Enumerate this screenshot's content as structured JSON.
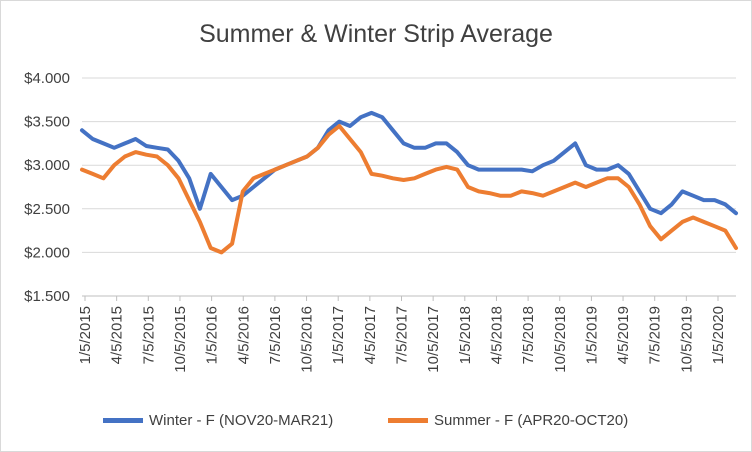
{
  "chart_data": {
    "type": "line",
    "title": "Summer & Winter Strip Average",
    "xlabel": "",
    "ylabel": "",
    "ylim": [
      1.5,
      4.0
    ],
    "y_ticks": [
      1.5,
      2.0,
      2.5,
      3.0,
      3.5,
      4.0
    ],
    "y_tick_labels": [
      "$1.500",
      "$2.000",
      "$2.500",
      "$3.000",
      "$3.500",
      "$4.000"
    ],
    "x_tick_labels": [
      "1/5/2015",
      "4/5/2015",
      "7/5/2015",
      "10/5/2015",
      "1/5/2016",
      "4/5/2016",
      "7/5/2016",
      "10/5/2016",
      "1/5/2017",
      "4/5/2017",
      "7/5/2017",
      "10/5/2017",
      "1/5/2018",
      "4/5/2018",
      "7/5/2018",
      "10/5/2018",
      "1/5/2019",
      "4/5/2019",
      "7/5/2019",
      "10/5/2019",
      "1/5/2020"
    ],
    "x": [
      "2015-01",
      "2015-02",
      "2015-03",
      "2015-04",
      "2015-05",
      "2015-06",
      "2015-07",
      "2015-08",
      "2015-09",
      "2015-10",
      "2015-11",
      "2015-12",
      "2016-01",
      "2016-02",
      "2016-03",
      "2016-04",
      "2016-05",
      "2016-06",
      "2016-07",
      "2016-08",
      "2016-09",
      "2016-10",
      "2016-11",
      "2016-12",
      "2017-01",
      "2017-02",
      "2017-03",
      "2017-04",
      "2017-05",
      "2017-06",
      "2017-07",
      "2017-08",
      "2017-09",
      "2017-10",
      "2017-11",
      "2017-12",
      "2018-01",
      "2018-02",
      "2018-03",
      "2018-04",
      "2018-05",
      "2018-06",
      "2018-07",
      "2018-08",
      "2018-09",
      "2018-10",
      "2018-11",
      "2018-12",
      "2019-01",
      "2019-02",
      "2019-03",
      "2019-04",
      "2019-05",
      "2019-06",
      "2019-07",
      "2019-08",
      "2019-09",
      "2019-10",
      "2019-11",
      "2019-12",
      "2020-01",
      "2020-02"
    ],
    "grid": true,
    "legend_position": "bottom",
    "series": [
      {
        "name": "Winter - F (NOV20-MAR21)",
        "color": "#4472C4",
        "values": [
          3.4,
          3.3,
          3.25,
          3.2,
          3.25,
          3.3,
          3.22,
          3.2,
          3.18,
          3.05,
          2.85,
          2.5,
          2.9,
          2.75,
          2.6,
          2.65,
          2.75,
          2.85,
          2.95,
          3.0,
          3.05,
          3.1,
          3.2,
          3.4,
          3.5,
          3.45,
          3.55,
          3.6,
          3.55,
          3.4,
          3.25,
          3.2,
          3.2,
          3.25,
          3.25,
          3.15,
          3.0,
          2.95,
          2.95,
          2.95,
          2.95,
          2.95,
          2.93,
          3.0,
          3.05,
          3.15,
          3.25,
          3.0,
          2.95,
          2.95,
          3.0,
          2.9,
          2.7,
          2.5,
          2.45,
          2.55,
          2.7,
          2.65,
          2.6,
          2.6,
          2.55,
          2.45
        ]
      },
      {
        "name": "Summer - F (APR20-OCT20)",
        "color": "#ED7D31",
        "values": [
          2.95,
          2.9,
          2.85,
          3.0,
          3.1,
          3.15,
          3.12,
          3.1,
          3.0,
          2.85,
          2.6,
          2.35,
          2.05,
          2.0,
          2.1,
          2.7,
          2.85,
          2.9,
          2.95,
          3.0,
          3.05,
          3.1,
          3.2,
          3.35,
          3.45,
          3.3,
          3.15,
          2.9,
          2.88,
          2.85,
          2.83,
          2.85,
          2.9,
          2.95,
          2.98,
          2.95,
          2.75,
          2.7,
          2.68,
          2.65,
          2.65,
          2.7,
          2.68,
          2.65,
          2.7,
          2.75,
          2.8,
          2.75,
          2.8,
          2.85,
          2.85,
          2.75,
          2.55,
          2.3,
          2.15,
          2.25,
          2.35,
          2.4,
          2.35,
          2.3,
          2.25,
          2.05
        ]
      }
    ]
  }
}
